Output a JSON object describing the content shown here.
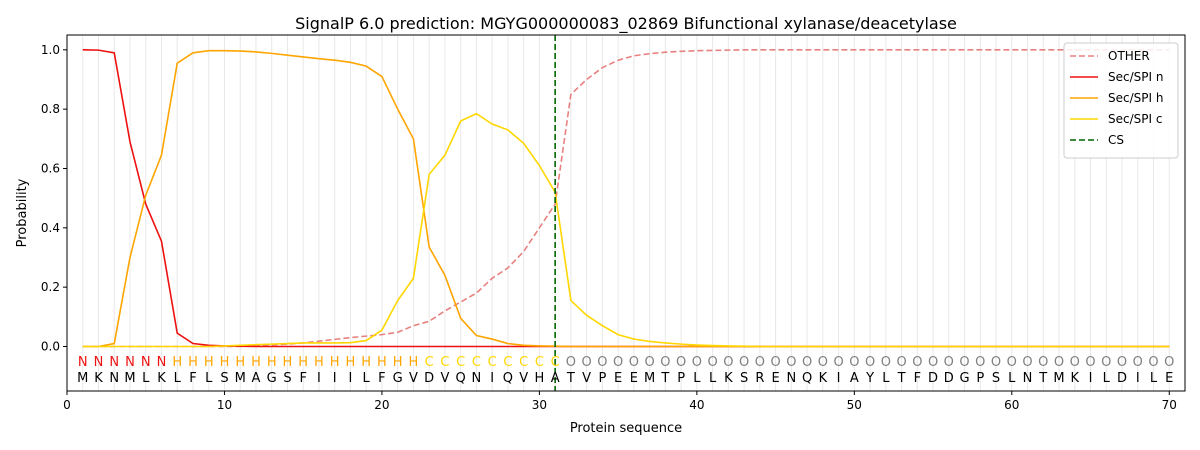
{
  "chart_data": {
    "type": "line",
    "title": "SignalP 6.0 prediction: MGYG000000083_02869 Bifunctional xylanase/deacetylase",
    "xlabel": "Protein sequence",
    "ylabel": "Probability",
    "xlim": [
      0,
      71
    ],
    "ylim": [
      -0.15,
      1.05
    ],
    "xticks": [
      0,
      10,
      20,
      30,
      40,
      50,
      60,
      70
    ],
    "yticks": [
      0.0,
      0.2,
      0.4,
      0.6,
      0.8,
      1.0
    ],
    "grid": "vertical lines at each residue",
    "legend_position": "top-right",
    "x": [
      1,
      2,
      3,
      4,
      5,
      6,
      7,
      8,
      9,
      10,
      11,
      12,
      13,
      14,
      15,
      16,
      17,
      18,
      19,
      20,
      21,
      22,
      23,
      24,
      25,
      26,
      27,
      28,
      29,
      30,
      31,
      32,
      33,
      34,
      35,
      36,
      37,
      38,
      39,
      40,
      41,
      42,
      43,
      44,
      45,
      46,
      47,
      48,
      49,
      50,
      51,
      52,
      53,
      54,
      55,
      56,
      57,
      58,
      59,
      60,
      61,
      62,
      63,
      64,
      65,
      66,
      67,
      68,
      69,
      70
    ],
    "sequence": [
      "M",
      "K",
      "N",
      "M",
      "L",
      "K",
      "L",
      "F",
      "L",
      "S",
      "M",
      "A",
      "G",
      "S",
      "F",
      "I",
      "I",
      "I",
      "L",
      "F",
      "G",
      "V",
      "D",
      "V",
      "Q",
      "N",
      "I",
      "Q",
      "V",
      "H",
      "A",
      "T",
      "V",
      "P",
      "E",
      "E",
      "M",
      "T",
      "P",
      "L",
      "L",
      "K",
      "S",
      "R",
      "E",
      "N",
      "Q",
      "K",
      "I",
      "A",
      "Y",
      "L",
      "T",
      "F",
      "D",
      "D",
      "G",
      "P",
      "S",
      "L",
      "N",
      "T",
      "M",
      "K",
      "I",
      "L",
      "D",
      "I",
      "L",
      "E"
    ],
    "region_labels": [
      "N",
      "N",
      "N",
      "N",
      "N",
      "N",
      "H",
      "H",
      "H",
      "H",
      "H",
      "H",
      "H",
      "H",
      "H",
      "H",
      "H",
      "H",
      "H",
      "H",
      "H",
      "H",
      "C",
      "C",
      "C",
      "C",
      "C",
      "C",
      "C",
      "C",
      "C",
      "O",
      "O",
      "O",
      "O",
      "O",
      "O",
      "O",
      "O",
      "O",
      "O",
      "O",
      "O",
      "O",
      "O",
      "O",
      "O",
      "O",
      "O",
      "O",
      "O",
      "O",
      "O",
      "O",
      "O",
      "O",
      "O",
      "O",
      "O",
      "O",
      "O",
      "O",
      "O",
      "O",
      "O",
      "O",
      "O",
      "O",
      "O",
      "O"
    ],
    "region_label_colors": {
      "N": "#ee1111",
      "H": "#ffa500",
      "C": "#ffd700",
      "O": "#808080"
    },
    "series": [
      {
        "name": "OTHER",
        "color": "#e88080",
        "style": "dashed",
        "values": [
          0.0,
          0.0,
          0.0,
          0.0,
          0.0,
          0.0,
          0.0,
          0.0,
          0.0,
          0.0,
          0.0,
          0.002,
          0.005,
          0.008,
          0.012,
          0.018,
          0.024,
          0.03,
          0.035,
          0.04,
          0.048,
          0.07,
          0.085,
          0.12,
          0.15,
          0.18,
          0.23,
          0.265,
          0.32,
          0.4,
          0.48,
          0.85,
          0.9,
          0.94,
          0.965,
          0.98,
          0.987,
          0.992,
          0.995,
          0.997,
          0.998,
          0.999,
          1.0,
          1.0,
          1.0,
          1.0,
          1.0,
          1.0,
          1.0,
          1.0,
          1.0,
          1.0,
          1.0,
          1.0,
          1.0,
          1.0,
          1.0,
          1.0,
          1.0,
          1.0,
          1.0,
          1.0,
          1.0,
          1.0,
          1.0,
          1.0,
          1.0,
          1.0,
          1.0,
          1.0
        ]
      },
      {
        "name": "Sec/SPI n",
        "color": "#ee1111",
        "style": "solid",
        "values": [
          1.0,
          0.999,
          0.99,
          0.69,
          0.48,
          0.355,
          0.045,
          0.01,
          0.004,
          0.002,
          0.001,
          0.0,
          0.0,
          0.0,
          0.0,
          0.0,
          0.0,
          0.0,
          0.0,
          0.0,
          0.0,
          0.0,
          0.0,
          0.0,
          0.0,
          0.0,
          0.0,
          0.0,
          0.0,
          0.0,
          0.0,
          0.0,
          0.0,
          0.0,
          0.0,
          0.0,
          0.0,
          0.0,
          0.0,
          0.0,
          0.0,
          0.0,
          0.0,
          0.0,
          0.0,
          0.0,
          0.0,
          0.0,
          0.0,
          0.0,
          0.0,
          0.0,
          0.0,
          0.0,
          0.0,
          0.0,
          0.0,
          0.0,
          0.0,
          0.0,
          0.0,
          0.0,
          0.0,
          0.0,
          0.0,
          0.0,
          0.0,
          0.0,
          0.0,
          0.0
        ]
      },
      {
        "name": "Sec/SPI h",
        "color": "#ffa500",
        "style": "solid",
        "values": [
          0.0,
          0.0,
          0.01,
          0.3,
          0.51,
          0.645,
          0.955,
          0.99,
          0.997,
          0.997,
          0.996,
          0.993,
          0.988,
          0.982,
          0.976,
          0.97,
          0.965,
          0.958,
          0.945,
          0.91,
          0.8,
          0.7,
          0.335,
          0.24,
          0.095,
          0.037,
          0.025,
          0.01,
          0.004,
          0.002,
          0.001,
          0.0,
          0.0,
          0.0,
          0.0,
          0.0,
          0.0,
          0.0,
          0.0,
          0.0,
          0.0,
          0.0,
          0.0,
          0.0,
          0.0,
          0.0,
          0.0,
          0.0,
          0.0,
          0.0,
          0.0,
          0.0,
          0.0,
          0.0,
          0.0,
          0.0,
          0.0,
          0.0,
          0.0,
          0.0,
          0.0,
          0.0,
          0.0,
          0.0,
          0.0,
          0.0,
          0.0,
          0.0,
          0.0,
          0.0
        ]
      },
      {
        "name": "Sec/SPI c",
        "color": "#ffd700",
        "style": "solid",
        "values": [
          0.0,
          0.0,
          0.0,
          0.0,
          0.0,
          0.0,
          0.0,
          0.0,
          0.0,
          0.002,
          0.004,
          0.006,
          0.008,
          0.01,
          0.012,
          0.012,
          0.012,
          0.013,
          0.02,
          0.055,
          0.155,
          0.23,
          0.58,
          0.645,
          0.76,
          0.785,
          0.75,
          0.73,
          0.685,
          0.61,
          0.52,
          0.155,
          0.105,
          0.07,
          0.04,
          0.025,
          0.017,
          0.012,
          0.008,
          0.005,
          0.003,
          0.002,
          0.001,
          0.0,
          0.0,
          0.0,
          0.0,
          0.0,
          0.0,
          0.0,
          0.0,
          0.0,
          0.0,
          0.0,
          0.0,
          0.0,
          0.0,
          0.0,
          0.0,
          0.0,
          0.0,
          0.0,
          0.0,
          0.0,
          0.0,
          0.0,
          0.0,
          0.0,
          0.0,
          0.0
        ]
      }
    ],
    "cleavage_site": {
      "name": "CS",
      "x": 31,
      "color": "#006400",
      "style": "dashed"
    }
  }
}
